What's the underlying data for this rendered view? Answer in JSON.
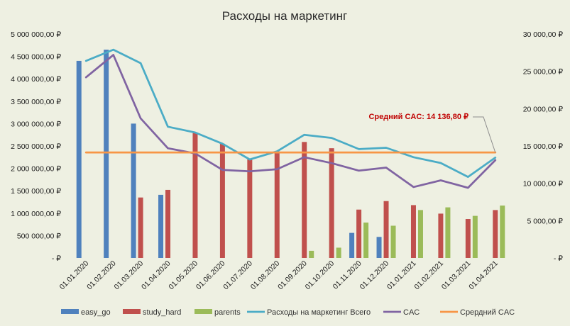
{
  "chart_data": {
    "type": "bar",
    "title": "Расходы на маркетинг",
    "categories": [
      "01.01.2020",
      "01.02.2020",
      "01.03.2020",
      "01.04.2020",
      "01.05.2020",
      "01.06.2020",
      "01.07.2020",
      "01.08.2020",
      "01.09.2020",
      "01.10.2020",
      "01.11.2020",
      "01.12.2020",
      "01.01.2021",
      "01.02.2021",
      "01.03.2021",
      "01.04.2021"
    ],
    "y_left": {
      "ylim": [
        0,
        5000000
      ],
      "ticks": [
        {
          "value": 0,
          "label": "-   ₽"
        },
        {
          "value": 500000,
          "label": "500 000,00 ₽"
        },
        {
          "value": 1000000,
          "label": "1 000 000,00 ₽"
        },
        {
          "value": 1500000,
          "label": "1 500 000,00 ₽"
        },
        {
          "value": 2000000,
          "label": "2 000 000,00 ₽"
        },
        {
          "value": 2500000,
          "label": "2 500 000,00 ₽"
        },
        {
          "value": 3000000,
          "label": "3 000 000,00 ₽"
        },
        {
          "value": 3500000,
          "label": "3 500 000,00 ₽"
        },
        {
          "value": 4000000,
          "label": "4 000 000,00 ₽"
        },
        {
          "value": 4500000,
          "label": "4 500 000,00 ₽"
        },
        {
          "value": 5000000,
          "label": "5 000 000,00 ₽"
        }
      ]
    },
    "y_right": {
      "ylim": [
        0,
        30000
      ],
      "ticks": [
        {
          "value": 0,
          "label": "-   ₽"
        },
        {
          "value": 5000,
          "label": "5 000,00 ₽"
        },
        {
          "value": 10000,
          "label": "10 000,00 ₽"
        },
        {
          "value": 15000,
          "label": "15 000,00 ₽"
        },
        {
          "value": 20000,
          "label": "20 000,00 ₽"
        },
        {
          "value": 25000,
          "label": "25 000,00 ₽"
        },
        {
          "value": 30000,
          "label": "30 000,00 ₽"
        }
      ]
    },
    "bar_series": [
      {
        "name": "easy_go",
        "color": "#4f81bd",
        "values": [
          4400000,
          4650000,
          3000000,
          1410000,
          null,
          null,
          null,
          null,
          null,
          null,
          560000,
          470000,
          null,
          null,
          null,
          null
        ]
      },
      {
        "name": "study_hard",
        "color": "#c0504d",
        "values": [
          null,
          null,
          1350000,
          1520000,
          2800000,
          2550000,
          2200000,
          2380000,
          2590000,
          2450000,
          1080000,
          1270000,
          1180000,
          990000,
          870000,
          1070000
        ]
      },
      {
        "name": "parents",
        "color": "#9bbb59",
        "values": [
          null,
          null,
          null,
          null,
          null,
          null,
          null,
          null,
          160000,
          230000,
          790000,
          720000,
          1070000,
          1130000,
          940000,
          1170000
        ]
      }
    ],
    "line_series": [
      {
        "name": "Расходы на маркетинг Всего",
        "color": "#4bacc6",
        "axis": "left",
        "values": [
          4400000,
          4650000,
          4350000,
          2930000,
          2800000,
          2550000,
          2200000,
          2380000,
          2750000,
          2680000,
          2430000,
          2460000,
          2250000,
          2120000,
          1810000,
          2240000
        ]
      },
      {
        "name": "CAC",
        "color": "#8064a2",
        "axis": "right",
        "values": [
          24200,
          27200,
          18700,
          14700,
          14000,
          11800,
          11600,
          11900,
          13500,
          12700,
          11700,
          12100,
          9500,
          10400,
          9400,
          13100
        ]
      },
      {
        "name": "Срердний CAC",
        "color": "#f79646",
        "axis": "right",
        "values": [
          14136.8,
          14136.8,
          14136.8,
          14136.8,
          14136.8,
          14136.8,
          14136.8,
          14136.8,
          14136.8,
          14136.8,
          14136.8,
          14136.8,
          14136.8,
          14136.8,
          14136.8,
          14136.8
        ]
      }
    ],
    "annotation": {
      "text": "Средний CAC:  14 136,80 ₽",
      "value": 14136.8
    },
    "grid": false,
    "legend_position": "bottom"
  }
}
